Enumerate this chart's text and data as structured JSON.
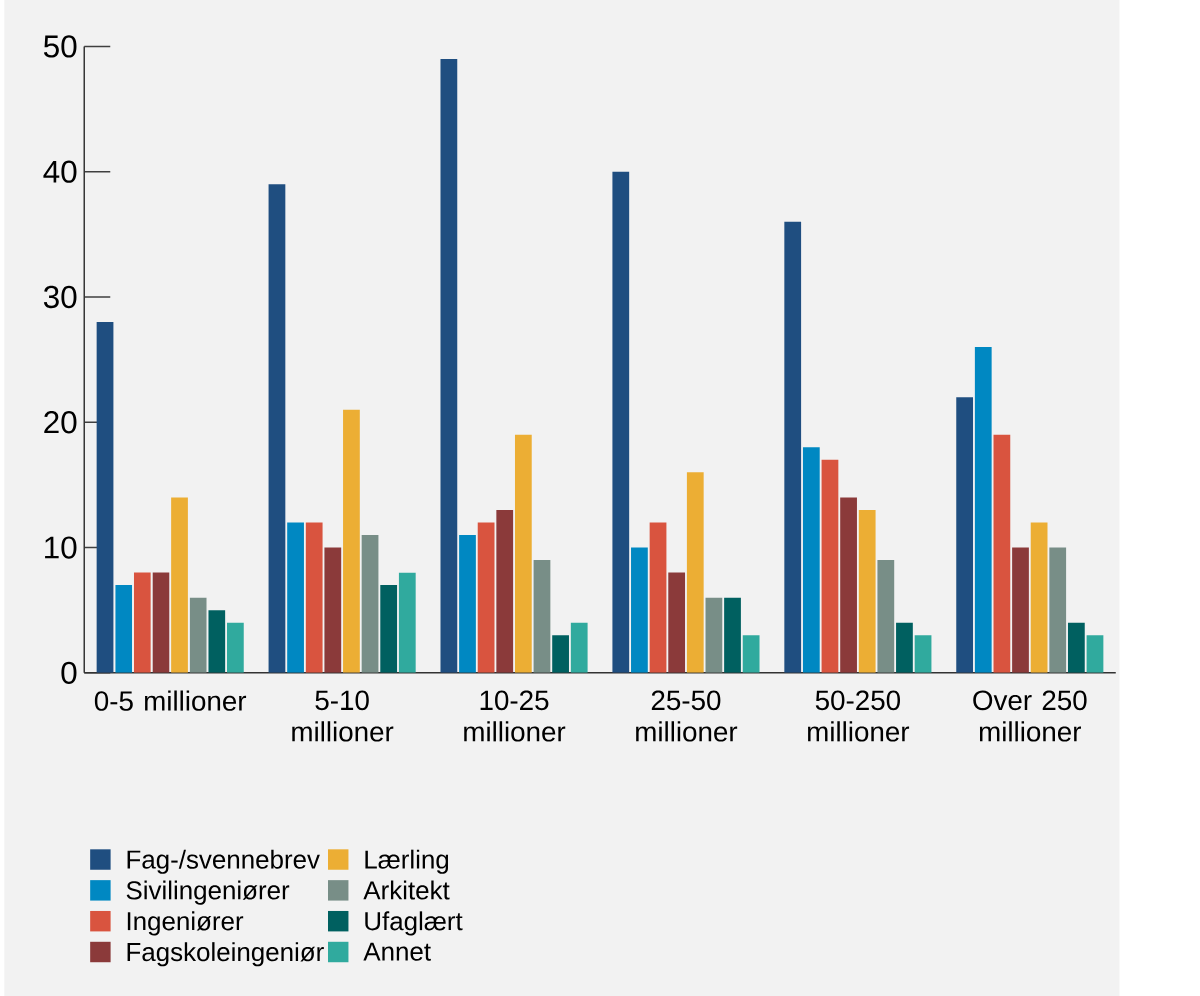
{
  "chart_data": {
    "type": "bar",
    "categories": [
      "0-5 millioner",
      "5-10 millioner",
      "10-25 millioner",
      "25-50 millioner",
      "50-250 millioner",
      "Over 250 millioner"
    ],
    "series": [
      {
        "name": "Fag-/svennebrev",
        "color": "#1f4e80",
        "values": [
          28,
          39,
          49,
          40,
          36,
          22
        ]
      },
      {
        "name": "Sivilingeniører",
        "color": "#0088c2",
        "values": [
          7,
          12,
          11,
          10,
          18,
          26
        ]
      },
      {
        "name": "Ingeniører",
        "color": "#d9543f",
        "values": [
          8,
          12,
          12,
          12,
          17,
          19
        ]
      },
      {
        "name": "Fagskoleingeniør",
        "color": "#8b3a3a",
        "values": [
          8,
          10,
          13,
          8,
          14,
          10
        ]
      },
      {
        "name": "Lærling",
        "color": "#ecae34",
        "values": [
          14,
          21,
          19,
          16,
          13,
          12
        ]
      },
      {
        "name": "Arkitekt",
        "color": "#788e87",
        "values": [
          6,
          11,
          9,
          6,
          9,
          10
        ]
      },
      {
        "name": "Ufaglært",
        "color": "#006060",
        "values": [
          5,
          7,
          3,
          6,
          4,
          4
        ]
      },
      {
        "name": "Annet",
        "color": "#30aa9e",
        "values": [
          4,
          8,
          4,
          3,
          3,
          3
        ]
      }
    ],
    "ylim": [
      0,
      50
    ],
    "yticks": [
      0,
      10,
      20,
      30,
      40,
      50
    ],
    "grid": false,
    "legend": "bottom"
  }
}
